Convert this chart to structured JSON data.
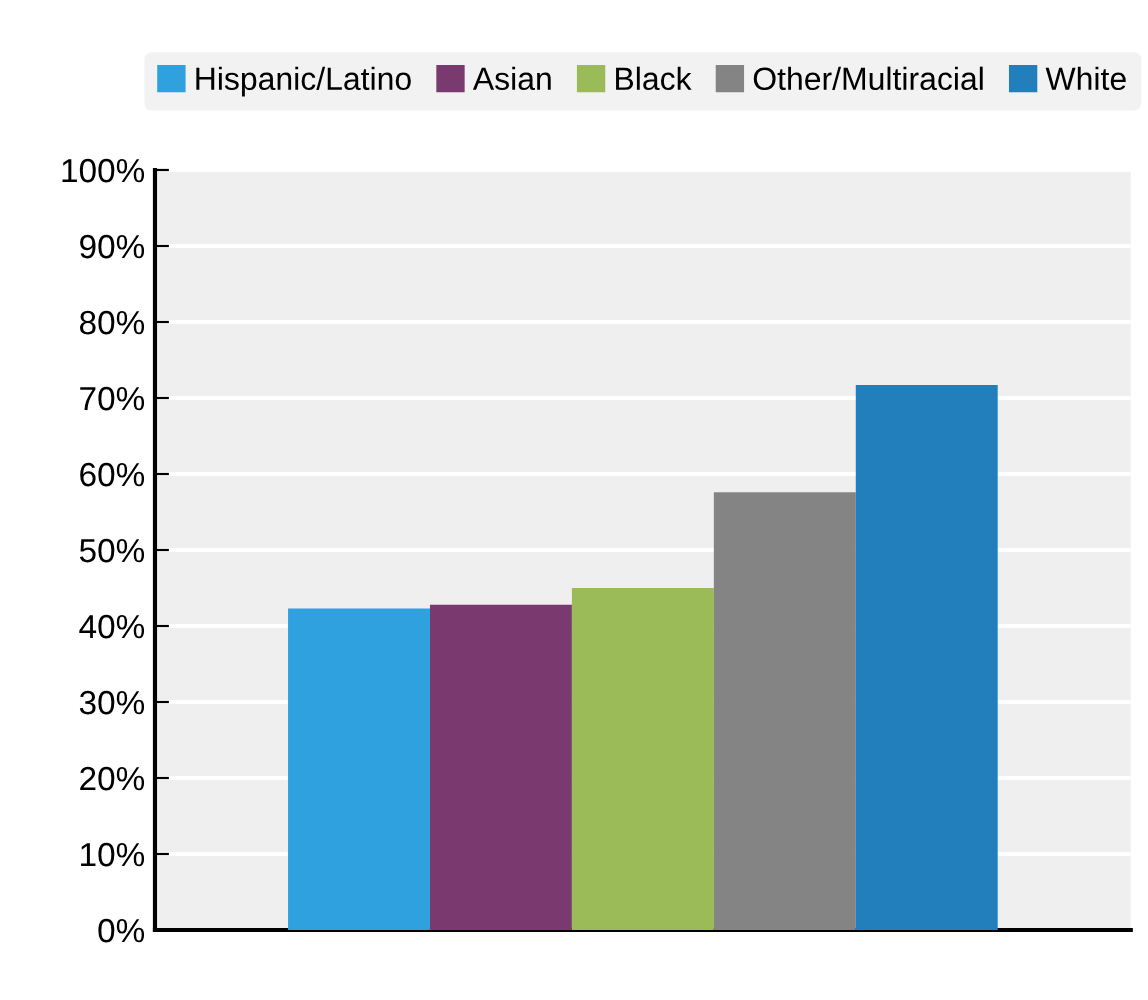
{
  "chart_data": {
    "type": "bar",
    "categories": [
      null
    ],
    "series": [
      {
        "name": "Hispanic/Latino",
        "color": "#2ea1de",
        "values": [
          42.3
        ]
      },
      {
        "name": "Asian",
        "color": "#7a3a70",
        "values": [
          42.8
        ]
      },
      {
        "name": "Black",
        "color": "#9bbb59",
        "values": [
          45.0
        ]
      },
      {
        "name": "Other/Multiracial",
        "color": "#848484",
        "values": [
          57.6
        ]
      },
      {
        "name": "White",
        "color": "#237ebc",
        "values": [
          71.7
        ]
      }
    ],
    "ylim": [
      0,
      100
    ],
    "yticks": [
      {
        "value": 0,
        "label": "0%"
      },
      {
        "value": 10,
        "label": "10%"
      },
      {
        "value": 20,
        "label": "20%"
      },
      {
        "value": 30,
        "label": "30%"
      },
      {
        "value": 40,
        "label": "40%"
      },
      {
        "value": 50,
        "label": "50%"
      },
      {
        "value": 60,
        "label": "60%"
      },
      {
        "value": 70,
        "label": "70%"
      },
      {
        "value": 80,
        "label": "80%"
      },
      {
        "value": 90,
        "label": "90%"
      },
      {
        "value": 100,
        "label": "100%"
      }
    ],
    "grid": "y",
    "legend": "top"
  }
}
